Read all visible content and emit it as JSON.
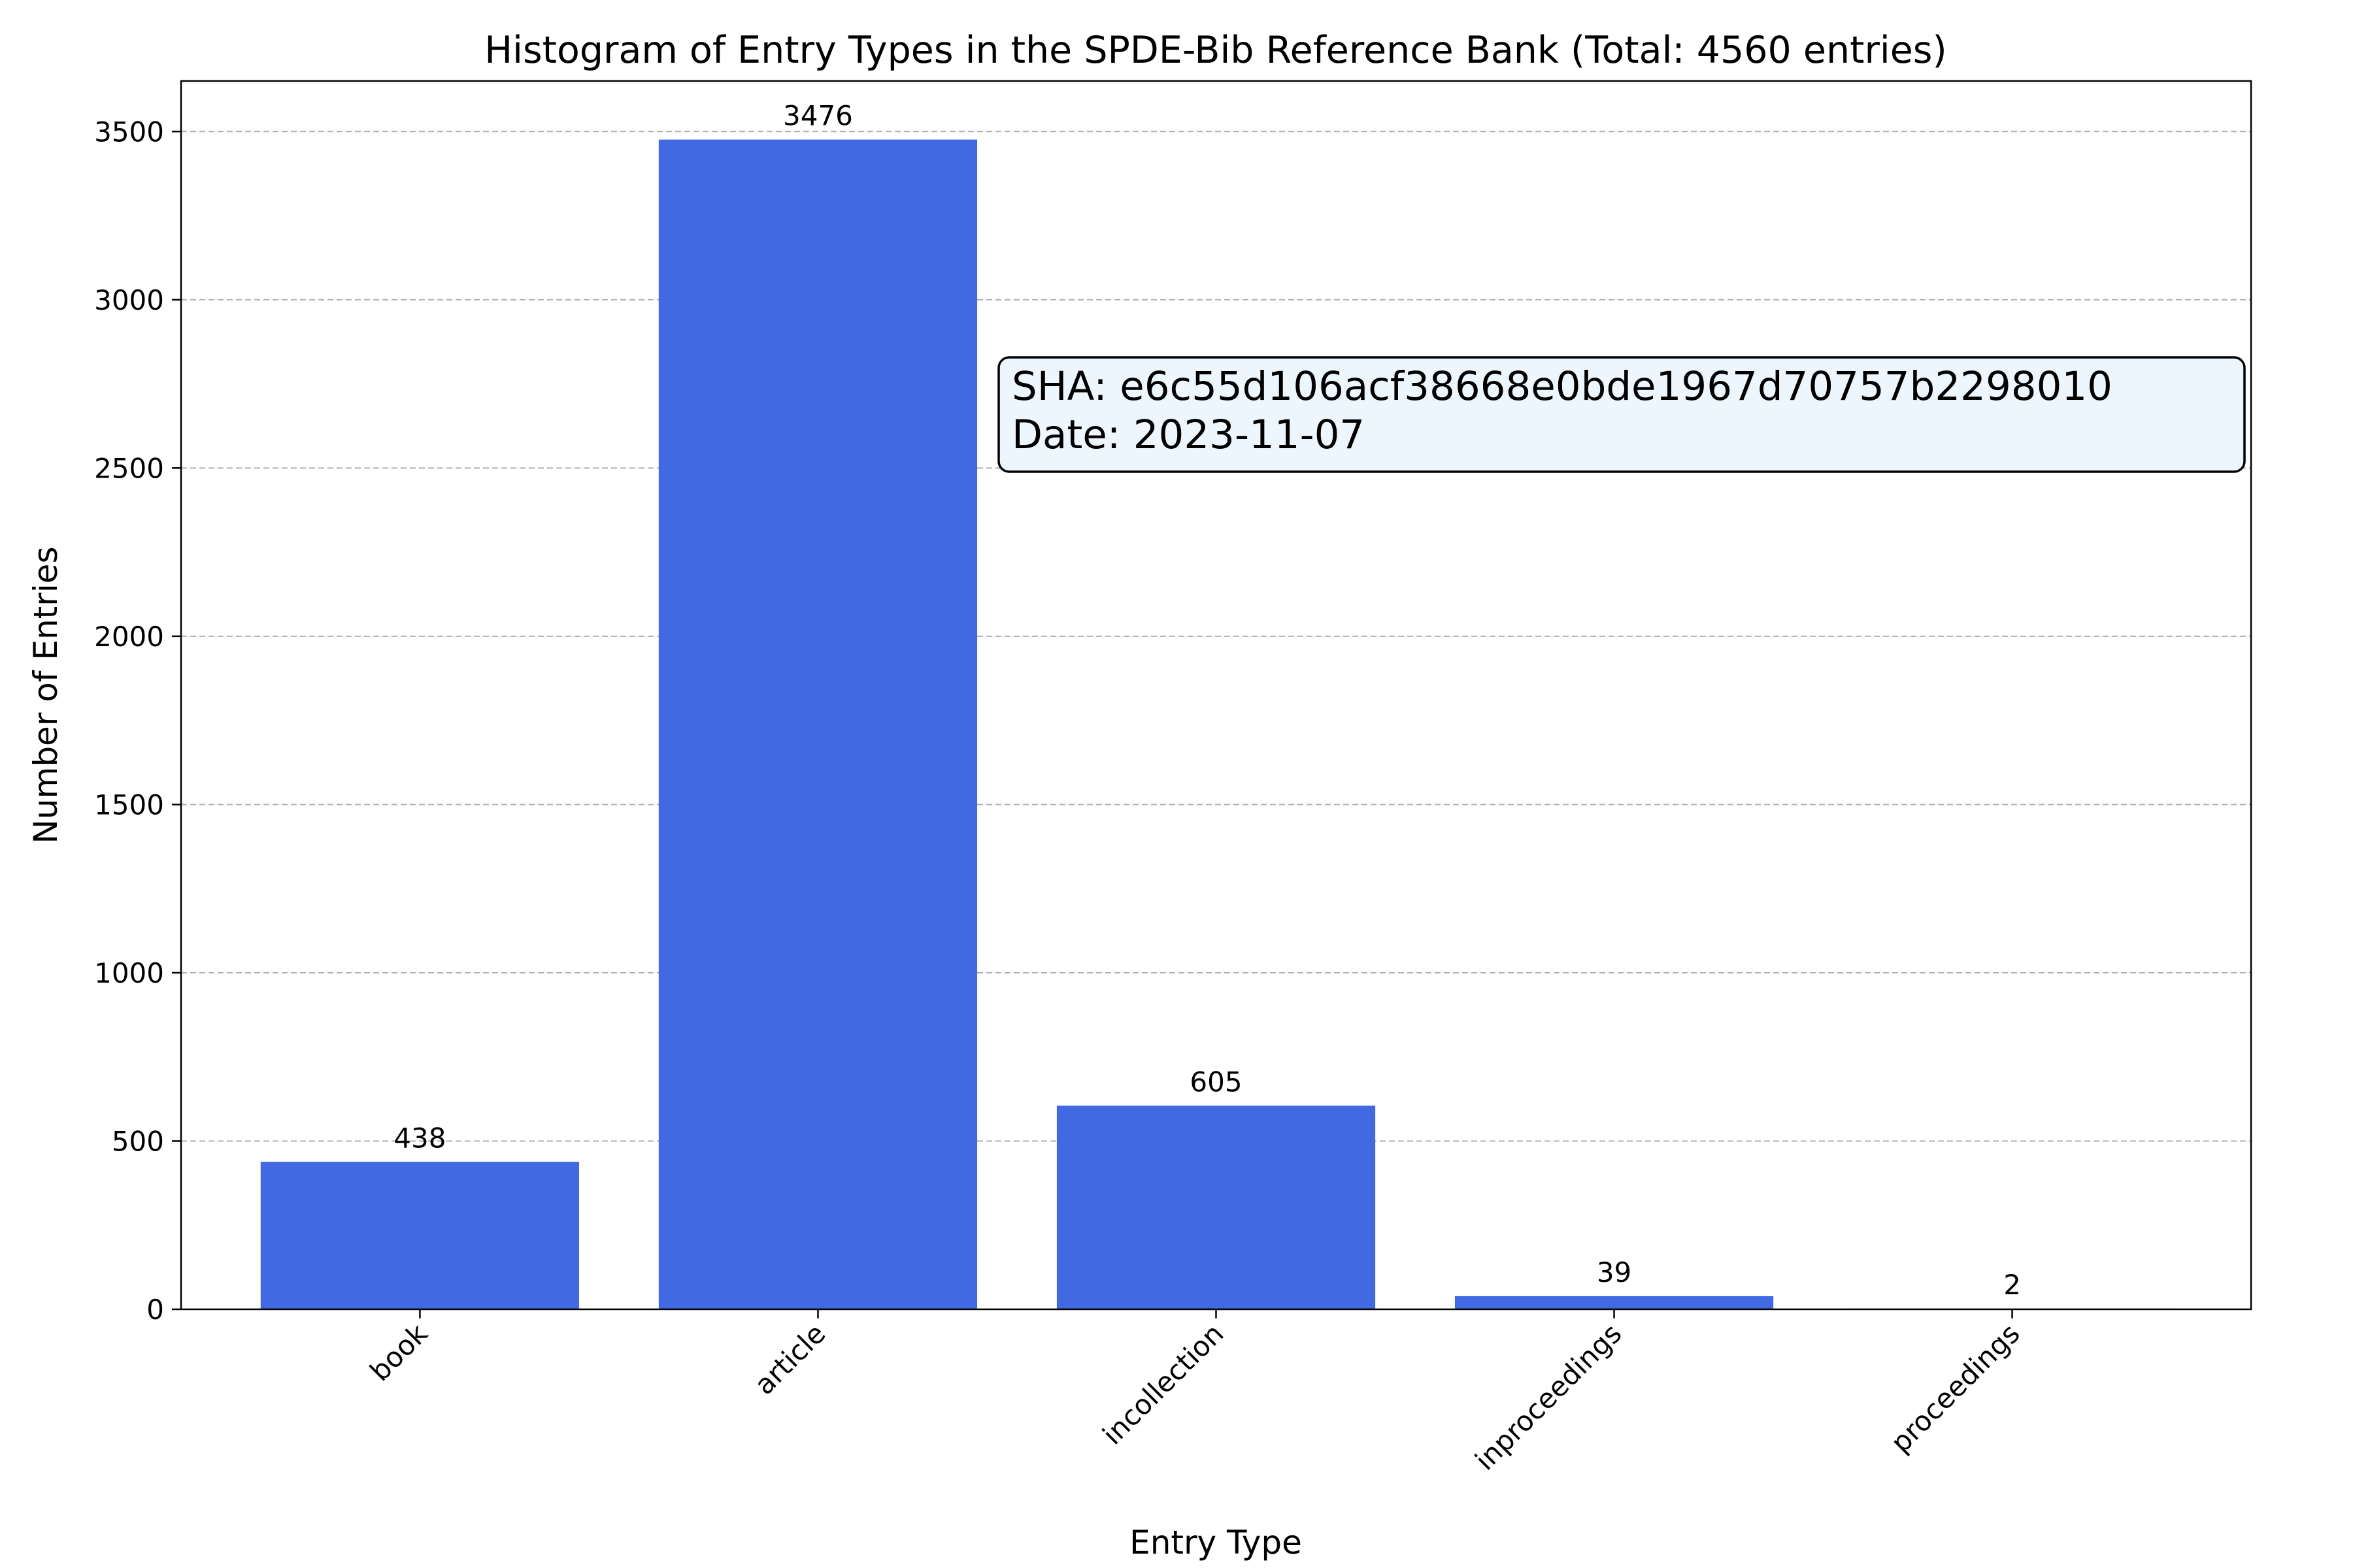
{
  "chart_data": {
    "type": "bar",
    "title": "Histogram of Entry Types in the SPDE-Bib Reference Bank (Total: 4560 entries)",
    "xlabel": "Entry Type",
    "ylabel": "Number of Entries",
    "categories": [
      "book",
      "article",
      "incollection",
      "inproceedings",
      "proceedings"
    ],
    "values": [
      438,
      3476,
      605,
      39,
      2
    ],
    "ylim": [
      0,
      3650
    ],
    "yticks": [
      0,
      500,
      1000,
      1500,
      2000,
      2500,
      3000,
      3500
    ],
    "grid": "y-dashed",
    "bar_color": "#4169e1",
    "annotation": {
      "line1": "SHA: e6c55d106acf38668e0bde1967d70757b2298010",
      "line2": "Date: 2023-11-07",
      "background": "#eef6fd",
      "border": "#000000"
    }
  }
}
